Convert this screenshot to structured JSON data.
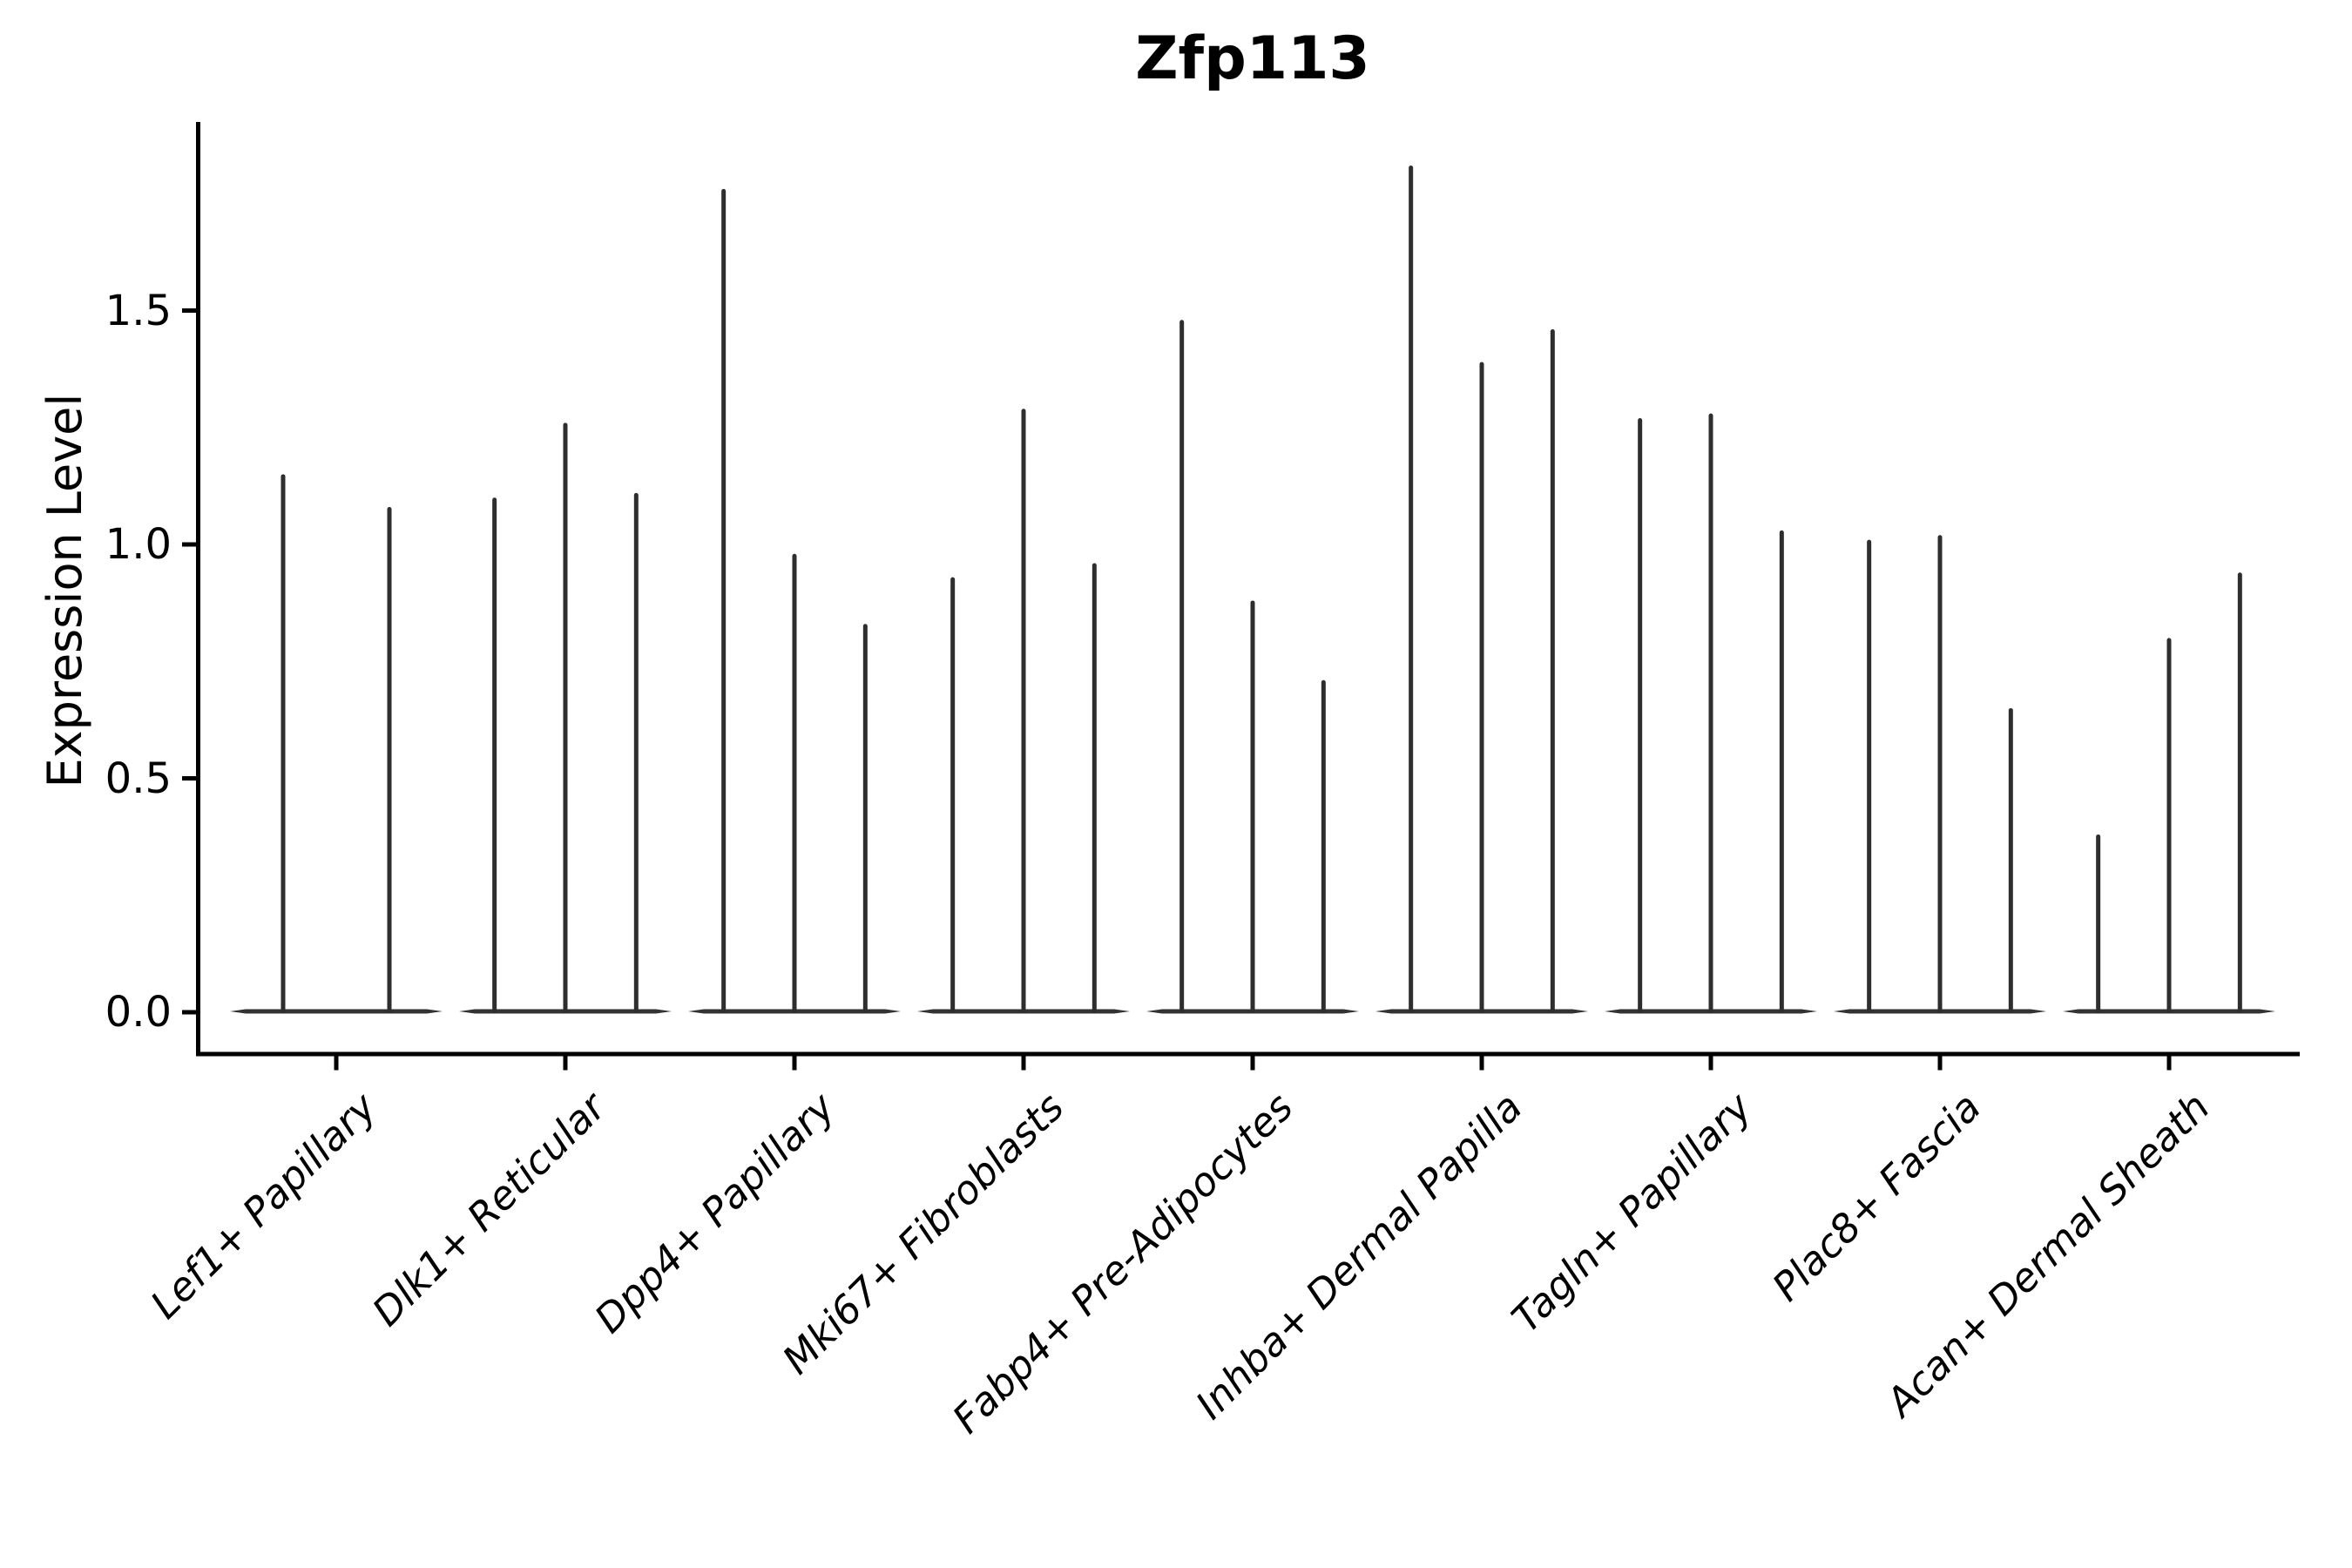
{
  "title": "Zfp113",
  "y_axis": {
    "label": "Expression Level",
    "tick_labels": [
      "0.0",
      "0.5",
      "1.0",
      "1.5"
    ],
    "tick_values": [
      0.0,
      0.5,
      1.0,
      1.5
    ]
  },
  "colors": {
    "violin": "#2e2e2e",
    "violin_base": "#333333",
    "axis": "#000000",
    "text": "#000000",
    "background": "#ffffff"
  },
  "chart_data": {
    "type": "violin",
    "title": "Zfp113",
    "xlabel": "",
    "ylabel": "Expression Level",
    "ylim": [
      -0.09,
      1.9
    ],
    "yticks": [
      0.0,
      0.5,
      1.0,
      1.5
    ],
    "grid": false,
    "legend": "none",
    "description": "Grouped violin plot of gene expression; each violin is collapsed to a thin spike with a flat wide base at 0. Values below are the maximum expression (spike top) of each violin within each category group.",
    "categories": [
      "Lef1+ Papillary",
      "Dlk1+ Reticular",
      "Dpp4+ Papillary",
      "Mki67+ Fibroblasts",
      "Fabp4+ Pre-Adipocytes",
      "Inhba+ Dermal Papilla",
      "Tagln+ Papillary",
      "Plac8+ Fascia",
      "Acan+ Dermal Sheath"
    ],
    "series": [
      {
        "name": "Lef1+ Papillary",
        "violin_maxima": [
          1.15,
          1.08
        ],
        "baseline_value": 0.0
      },
      {
        "name": "Dlk1+ Reticular",
        "violin_maxima": [
          1.1,
          1.26,
          1.11
        ],
        "baseline_value": 0.0
      },
      {
        "name": "Dpp4+ Papillary",
        "violin_maxima": [
          1.76,
          0.98,
          0.83
        ],
        "baseline_value": 0.0
      },
      {
        "name": "Mki67+ Fibroblasts",
        "violin_maxima": [
          0.93,
          1.29,
          0.96
        ],
        "baseline_value": 0.0
      },
      {
        "name": "Fabp4+ Pre-Adipocytes",
        "violin_maxima": [
          1.48,
          0.88,
          0.71
        ],
        "baseline_value": 0.0
      },
      {
        "name": "Inhba+ Dermal Papilla",
        "violin_maxima": [
          1.81,
          1.39,
          1.46
        ],
        "baseline_value": 0.0
      },
      {
        "name": "Tagln+ Papillary",
        "violin_maxima": [
          1.27,
          1.28,
          1.03
        ],
        "baseline_value": 0.0
      },
      {
        "name": "Plac8+ Fascia",
        "violin_maxima": [
          1.01,
          1.02,
          0.65
        ],
        "baseline_value": 0.0
      },
      {
        "name": "Acan+ Dermal Sheath",
        "violin_maxima": [
          0.38,
          0.8,
          0.94
        ],
        "baseline_value": 0.0
      }
    ]
  }
}
